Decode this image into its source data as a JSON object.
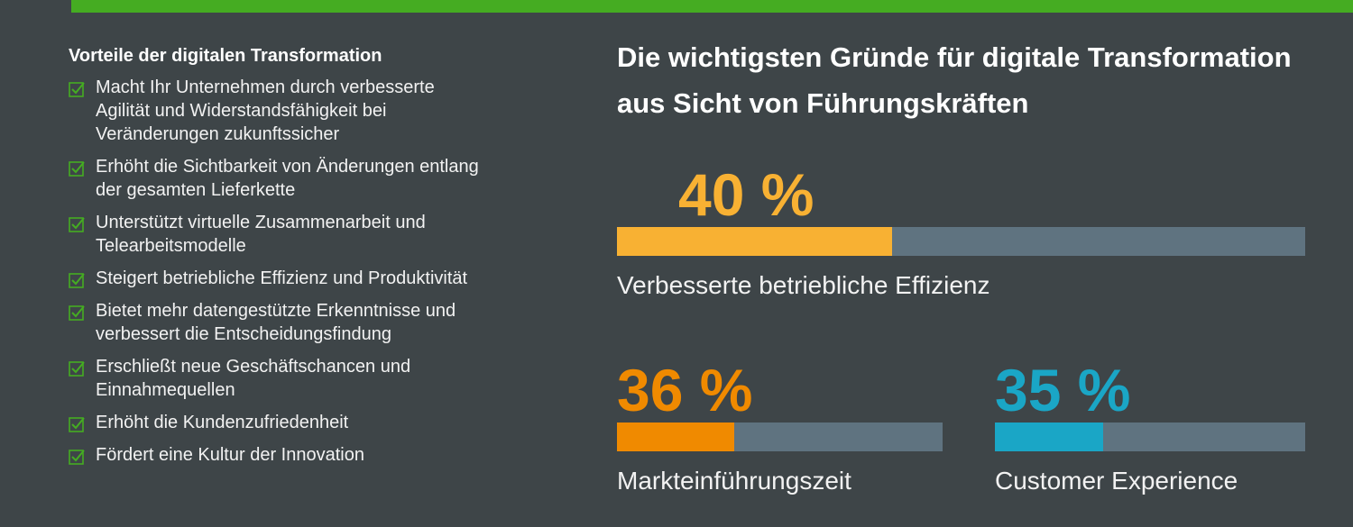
{
  "benefits": {
    "title": "Vorteile der digitalen Transformation",
    "items": [
      "Macht Ihr Unternehmen durch verbesserte Agilität und Widerstandsfähigkeit bei Veränderungen zukunftssicher",
      "Erhöht die Sichtbarkeit von Änderungen entlang der gesamten Lieferkette",
      "Unterstützt virtuelle Zusammenarbeit und Telearbeitsmodelle",
      "Steigert betriebliche Effizienz und Produktivität",
      "Bietet mehr datengestützte Erkenntnisse und verbessert die Entscheidungsfindung",
      "Erschließt neue Geschäftschancen und Einnahmequellen",
      "Erhöht die Kundenzufriedenheit",
      "Fördert eine Kultur der Innovation"
    ]
  },
  "reasons": {
    "title": "Die wichtigsten Gründe für digitale Transformation aus Sicht von Führungskräften",
    "xlim": [
      0,
      100
    ],
    "track_color": "#5f7380",
    "stats": [
      {
        "value": 40,
        "value_label": "40 %",
        "label": "Verbesserte betriebliche Effizienz",
        "color": "#f8b133"
      },
      {
        "value": 36,
        "value_label": "36 %",
        "label": "Markteinführungszeit",
        "color": "#f08a00"
      },
      {
        "value": 35,
        "value_label": "35 %",
        "label": "Customer Experience",
        "color": "#1aa6c6"
      }
    ]
  }
}
